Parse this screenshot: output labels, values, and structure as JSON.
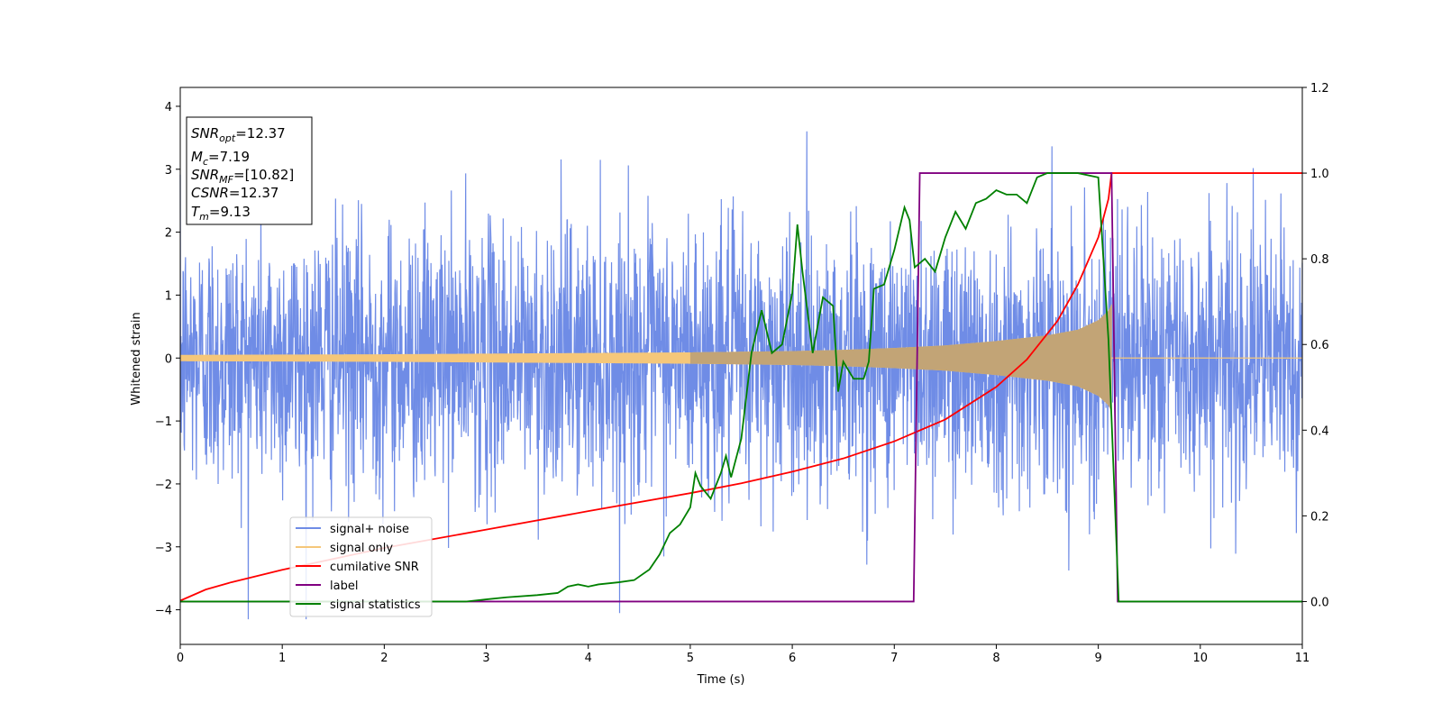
{
  "chart_data": {
    "type": "line",
    "xlabel": "Time (s)",
    "ylabel": "Whitened strain",
    "xlim": [
      0,
      11
    ],
    "ylim": [
      -4.55,
      4.3
    ],
    "y2lim": [
      -0.1,
      1.2
    ],
    "x_ticks": [
      "0",
      "1",
      "2",
      "3",
      "4",
      "5",
      "6",
      "7",
      "8",
      "9",
      "10",
      "11"
    ],
    "y_ticks": [
      "−4",
      "−3",
      "−2",
      "−1",
      "0",
      "1",
      "2",
      "3",
      "4"
    ],
    "y2_ticks": [
      "0.0",
      "0.2",
      "0.4",
      "0.6",
      "0.8",
      "1.0",
      "1.2"
    ],
    "grid": false,
    "legend_position": "lower-left",
    "annotation": {
      "lines": [
        {
          "main": "SNR",
          "sub": "opt",
          "value": "=12.37"
        },
        {
          "main": "M",
          "sub": "c",
          "value": "=7.19"
        },
        {
          "main": "SNR",
          "sub": "MF",
          "value": "=[10.82]"
        },
        {
          "main": "CSNR",
          "sub": "",
          "value": "=12.37"
        },
        {
          "main": "T",
          "sub": "m",
          "value": "=9.13"
        }
      ]
    },
    "series": [
      {
        "name": "signal+ noise",
        "color": "#6f8ce6",
        "axis": "left",
        "description_stats": {
          "typical_range": [
            -2.5,
            2.8
          ],
          "extremes": [
            -4.15,
            3.9
          ],
          "x_end": 11
        }
      },
      {
        "name": "signal only",
        "color": "#f5c77a",
        "axis": "left",
        "envelope": {
          "x": [
            0,
            1,
            2,
            3,
            4,
            5,
            6,
            6.5,
            7,
            7.5,
            8,
            8.5,
            8.8,
            9.0,
            9.1,
            9.13,
            9.14,
            11
          ],
          "amplitude": [
            0.05,
            0.055,
            0.06,
            0.07,
            0.08,
            0.09,
            0.11,
            0.13,
            0.16,
            0.2,
            0.27,
            0.36,
            0.45,
            0.6,
            0.75,
            0.85,
            0.0,
            0.0
          ]
        }
      },
      {
        "name": "cumilative SNR",
        "color": "#ff0000",
        "axis": "right",
        "x": [
          0,
          0.25,
          0.5,
          1,
          2,
          3,
          4,
          5,
          5.5,
          6,
          6.5,
          7,
          7.5,
          8,
          8.3,
          8.6,
          8.8,
          9.0,
          9.1,
          9.13,
          11
        ],
        "values": [
          0.002,
          0.028,
          0.045,
          0.074,
          0.125,
          0.168,
          0.211,
          0.253,
          0.276,
          0.303,
          0.334,
          0.374,
          0.425,
          0.501,
          0.565,
          0.655,
          0.74,
          0.85,
          0.94,
          1.0,
          1.0
        ]
      },
      {
        "name": "label",
        "color": "#800080",
        "axis": "right",
        "x": [
          0,
          7.19,
          7.25,
          9.13,
          9.19,
          11
        ],
        "values": [
          0,
          0,
          1,
          1,
          0,
          0
        ]
      },
      {
        "name": "signal statistics",
        "color": "#008000",
        "axis": "right",
        "x": [
          0,
          2.8,
          3.0,
          3.2,
          3.5,
          3.7,
          3.8,
          3.9,
          4.0,
          4.1,
          4.3,
          4.45,
          4.6,
          4.7,
          4.8,
          4.9,
          5.0,
          5.05,
          5.1,
          5.2,
          5.3,
          5.35,
          5.4,
          5.5,
          5.6,
          5.7,
          5.8,
          5.9,
          6.0,
          6.05,
          6.1,
          6.2,
          6.3,
          6.4,
          6.45,
          6.5,
          6.6,
          6.7,
          6.75,
          6.8,
          6.9,
          7.0,
          7.1,
          7.15,
          7.2,
          7.3,
          7.4,
          7.5,
          7.6,
          7.7,
          7.8,
          7.9,
          8.0,
          8.1,
          8.2,
          8.3,
          8.4,
          8.5,
          8.6,
          8.8,
          9.0,
          9.1,
          9.2,
          9.25,
          11
        ],
        "values": [
          0.0,
          0.0,
          0.005,
          0.01,
          0.015,
          0.02,
          0.035,
          0.04,
          0.035,
          0.04,
          0.045,
          0.05,
          0.075,
          0.11,
          0.16,
          0.18,
          0.22,
          0.3,
          0.27,
          0.24,
          0.3,
          0.34,
          0.29,
          0.38,
          0.58,
          0.68,
          0.58,
          0.6,
          0.72,
          0.88,
          0.77,
          0.58,
          0.71,
          0.69,
          0.49,
          0.56,
          0.52,
          0.52,
          0.56,
          0.73,
          0.74,
          0.82,
          0.92,
          0.89,
          0.78,
          0.8,
          0.77,
          0.85,
          0.91,
          0.87,
          0.93,
          0.94,
          0.96,
          0.95,
          0.95,
          0.93,
          0.99,
          1.0,
          1.0,
          1.0,
          0.99,
          0.61,
          0.0,
          0.0,
          0.0
        ]
      }
    ]
  }
}
